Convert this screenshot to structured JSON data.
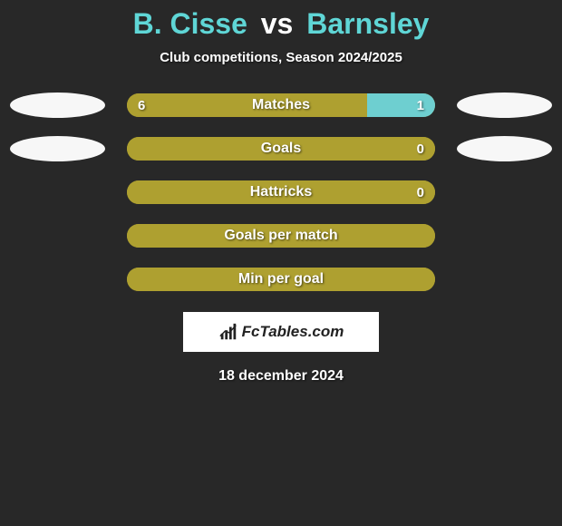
{
  "title": {
    "player1": "B. Cisse",
    "vs": "vs",
    "player2": "Barnsley",
    "color_player1": "#5fd6d6",
    "color_player2": "#5fd6d6",
    "color_vs": "#ffffff",
    "fontsize": 32
  },
  "subtitle": "Club competitions, Season 2024/2025",
  "background_color": "#282828",
  "ellipse_color": "#f7f7f7",
  "bar_text_color": "#ffffff",
  "stats": [
    {
      "label": "Matches",
      "left_value": "6",
      "right_value": "1",
      "left_pct": 78,
      "right_pct": 22,
      "left_color": "#aea030",
      "right_color": "#6ecfd0",
      "show_left_ellipse": true,
      "show_right_ellipse": true,
      "show_left_value": true,
      "show_right_value": true
    },
    {
      "label": "Goals",
      "left_value": "",
      "right_value": "0",
      "left_pct": 100,
      "right_pct": 0,
      "left_color": "#aea030",
      "right_color": "#6ecfd0",
      "show_left_ellipse": true,
      "show_right_ellipse": true,
      "show_left_value": false,
      "show_right_value": true
    },
    {
      "label": "Hattricks",
      "left_value": "",
      "right_value": "0",
      "left_pct": 100,
      "right_pct": 0,
      "left_color": "#aea030",
      "right_color": "#6ecfd0",
      "show_left_ellipse": false,
      "show_right_ellipse": false,
      "show_left_value": false,
      "show_right_value": true
    },
    {
      "label": "Goals per match",
      "left_value": "",
      "right_value": "",
      "left_pct": 100,
      "right_pct": 0,
      "left_color": "#aea030",
      "right_color": "#6ecfd0",
      "show_left_ellipse": false,
      "show_right_ellipse": false,
      "show_left_value": false,
      "show_right_value": false
    },
    {
      "label": "Min per goal",
      "left_value": "",
      "right_value": "",
      "left_pct": 100,
      "right_pct": 0,
      "left_color": "#aea030",
      "right_color": "#6ecfd0",
      "show_left_ellipse": false,
      "show_right_ellipse": false,
      "show_left_value": false,
      "show_right_value": false
    }
  ],
  "brand": {
    "text": "FcTables.com",
    "background": "#ffffff",
    "text_color": "#222222",
    "icon_color": "#222222"
  },
  "date": "18 december 2024"
}
